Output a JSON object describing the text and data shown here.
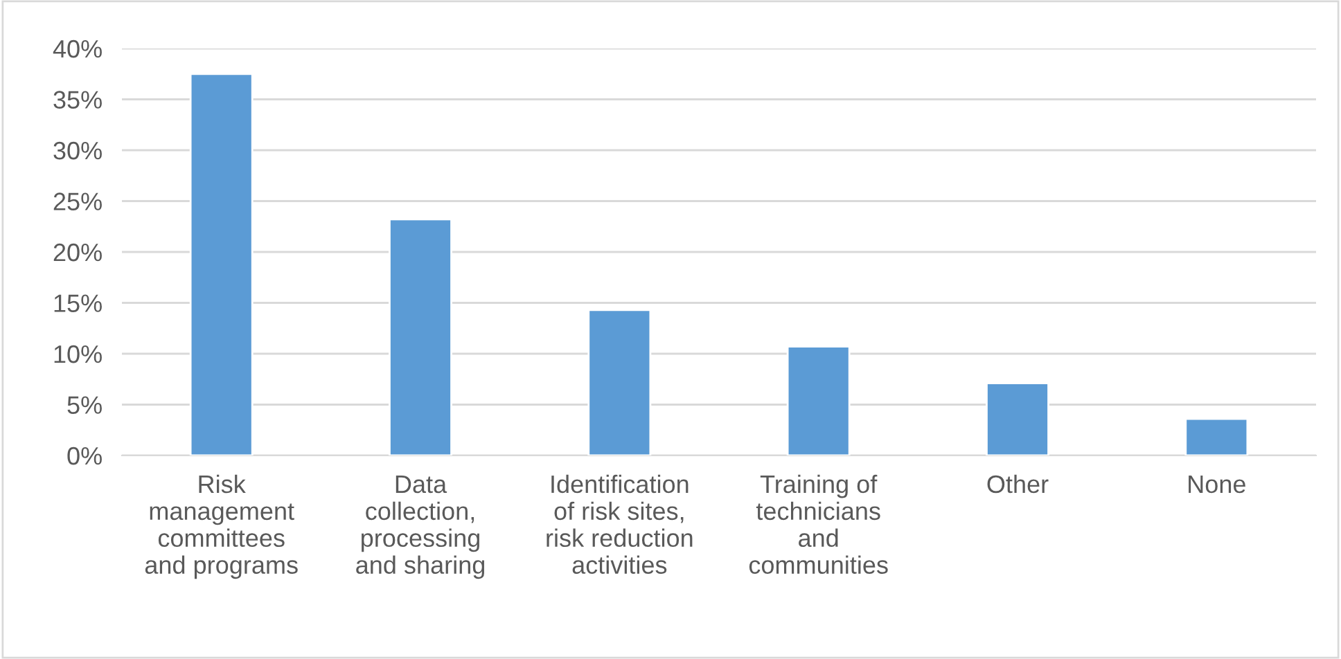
{
  "chart_data": {
    "type": "bar",
    "categories": [
      "Risk\nmanagement\ncommittees\nand programs",
      "Data\ncollection,\nprocessing\nand sharing",
      "Identification\nof risk sites,\nrisk reduction\nactivities",
      "Training of\ntechnicians\nand\ncommunities",
      "Other",
      "None"
    ],
    "values": [
      37.5,
      23.2,
      14.3,
      10.7,
      7.1,
      3.6
    ],
    "color": "#5b9bd5",
    "ylim": [
      0,
      40
    ],
    "yticks": [
      {
        "value": 0,
        "label": "0%"
      },
      {
        "value": 5,
        "label": "5%"
      },
      {
        "value": 10,
        "label": "10%"
      },
      {
        "value": 15,
        "label": "15%"
      },
      {
        "value": 20,
        "label": "20%"
      },
      {
        "value": 25,
        "label": "25%"
      },
      {
        "value": 30,
        "label": "30%"
      },
      {
        "value": 35,
        "label": "35%"
      },
      {
        "value": 40,
        "label": "40%"
      }
    ],
    "grid": "y"
  }
}
